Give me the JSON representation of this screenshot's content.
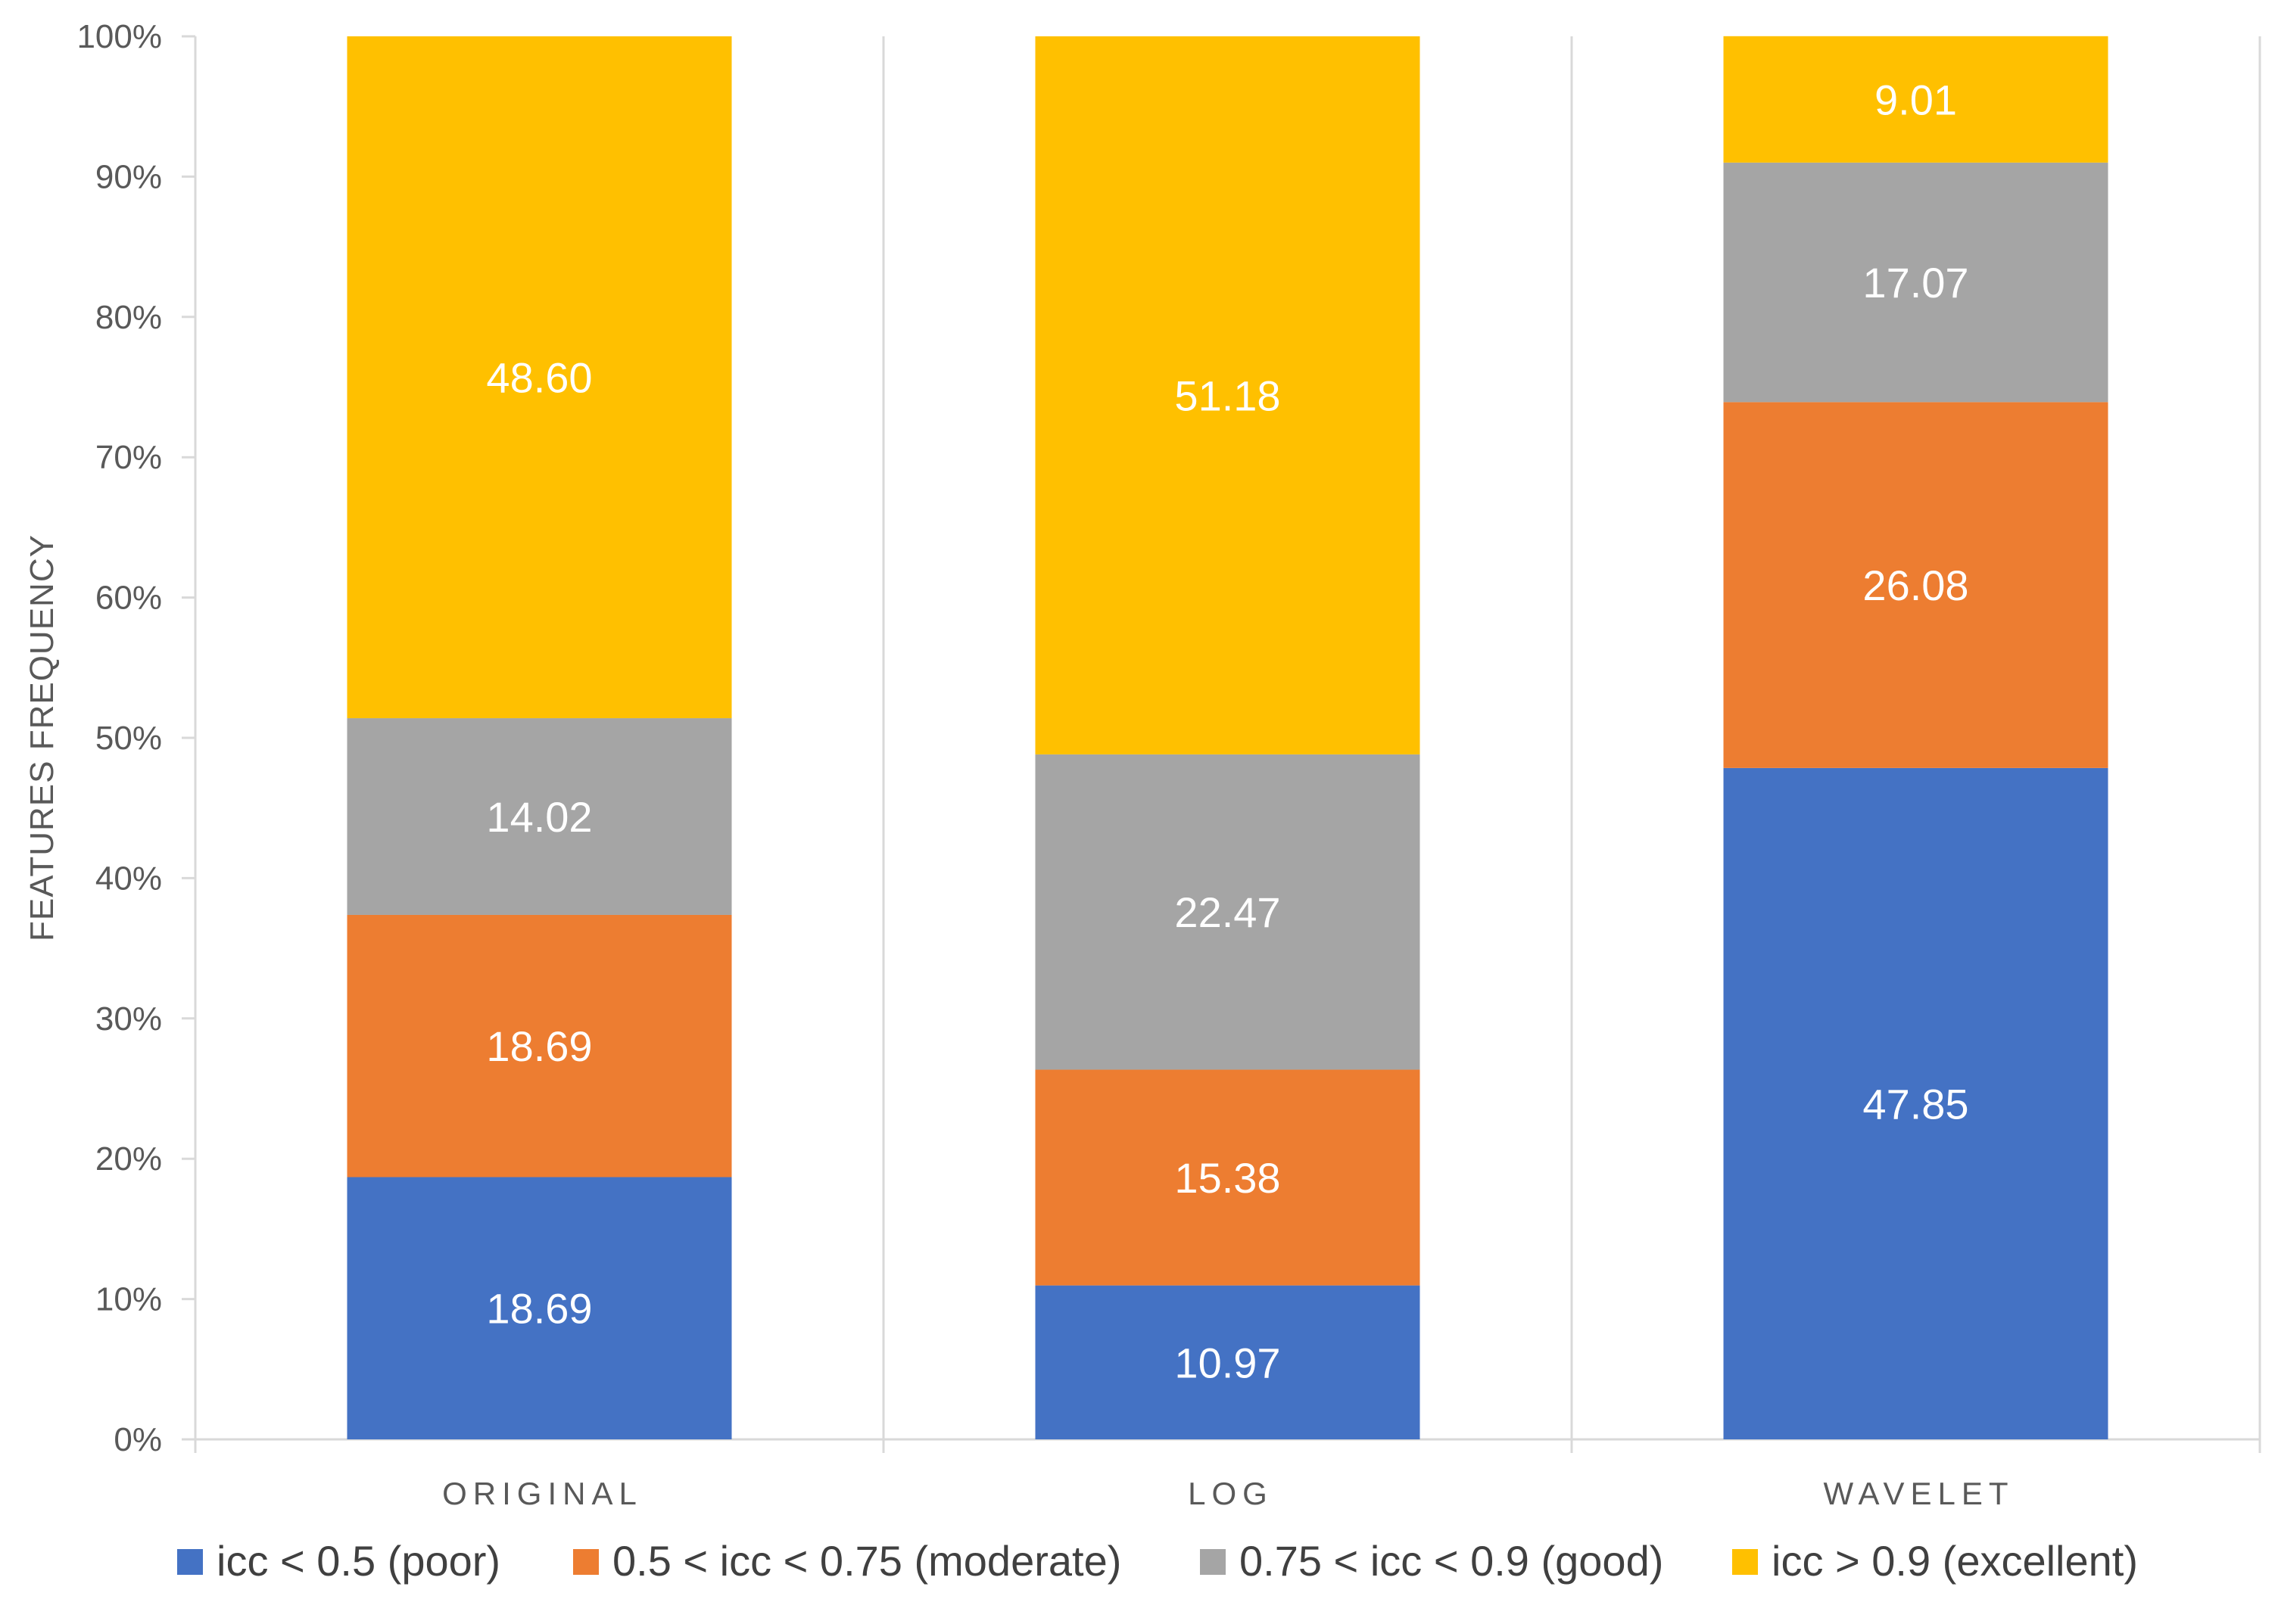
{
  "chart_data": {
    "type": "bar",
    "stacked": true,
    "percent_stacked": true,
    "title": "",
    "xlabel": "",
    "ylabel": "FEATURES FREQUENCY",
    "ylim": [
      0,
      100
    ],
    "yticks": [
      "0%",
      "10%",
      "20%",
      "30%",
      "40%",
      "50%",
      "60%",
      "70%",
      "80%",
      "90%",
      "100%"
    ],
    "categories": [
      "ORIGINAL",
      "LOG",
      "WAVELET"
    ],
    "series": [
      {
        "name": "icc < 0.5 (poor)",
        "color": "#4472C4",
        "values": [
          18.69,
          10.97,
          47.85
        ],
        "labels": [
          "18.69",
          "10.97",
          "47.85"
        ]
      },
      {
        "name": "0.5 < icc < 0.75 (moderate)",
        "color": "#ED7D31",
        "values": [
          18.69,
          15.38,
          26.08
        ],
        "labels": [
          "18.69",
          "15.38",
          "26.08"
        ]
      },
      {
        "name": "0.75 < icc < 0.9 (good)",
        "color": "#A5A5A5",
        "values": [
          14.02,
          22.47,
          17.07
        ],
        "labels": [
          "14.02",
          "22.47",
          "17.07"
        ]
      },
      {
        "name": "icc > 0.9 (excellent)",
        "color": "#FFC000",
        "values": [
          48.6,
          51.18,
          9.01
        ],
        "labels": [
          "48.60",
          "51.18",
          "9.01"
        ]
      }
    ],
    "legend_position": "bottom",
    "grid": "vertical-separators"
  }
}
